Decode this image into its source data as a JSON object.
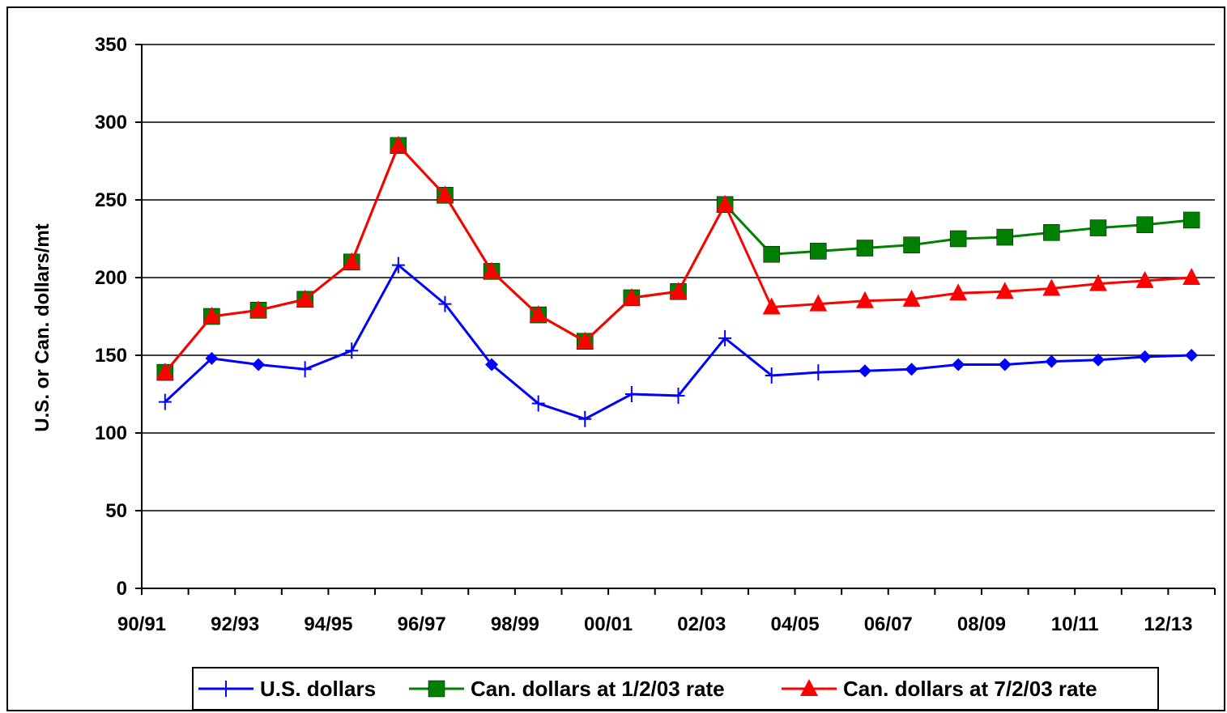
{
  "chart_data": {
    "type": "line",
    "ylabel": "U.S. or Can. dollars/mt",
    "xlabel": "",
    "ylim": [
      0,
      350
    ],
    "y_ticks": [
      0,
      50,
      100,
      150,
      200,
      250,
      300,
      350
    ],
    "grid": true,
    "legend_position": "bottom",
    "categories": [
      "90/91",
      "91/92",
      "92/93",
      "93/94",
      "94/95",
      "95/96",
      "96/97",
      "97/98",
      "98/99",
      "99/00",
      "00/01",
      "01/02",
      "02/03",
      "03/04",
      "04/05",
      "05/06",
      "06/07",
      "07/08",
      "08/09",
      "09/10",
      "10/11",
      "11/12",
      "12/13"
    ],
    "x_tick_labels": [
      "90/91",
      "92/93",
      "94/95",
      "96/97",
      "98/99",
      "00/01",
      "02/03",
      "04/05",
      "06/07",
      "08/09",
      "10/11",
      "12/13"
    ],
    "series": [
      {
        "name": "U.S. dollars",
        "color": "#0000FF",
        "values": [
          120,
          148,
          144,
          141,
          153,
          208,
          183,
          144,
          119,
          109,
          125,
          124,
          161,
          137,
          139,
          140,
          141,
          144,
          144,
          146,
          147,
          149,
          150
        ]
      },
      {
        "name": "Can. dollars at 1/2/03 rate",
        "color": "#008000",
        "values": [
          139,
          175,
          179,
          186,
          210,
          285,
          253,
          204,
          176,
          159,
          187,
          191,
          247,
          215,
          217,
          219,
          221,
          225,
          226,
          229,
          232,
          234,
          237
        ]
      },
      {
        "name": "Can. dollars at 7/2/03 rate",
        "color": "#FF0000",
        "values": [
          139,
          175,
          179,
          186,
          210,
          285,
          253,
          204,
          176,
          159,
          187,
          191,
          247,
          181,
          183,
          185,
          186,
          190,
          191,
          193,
          196,
          198,
          200
        ]
      }
    ]
  }
}
